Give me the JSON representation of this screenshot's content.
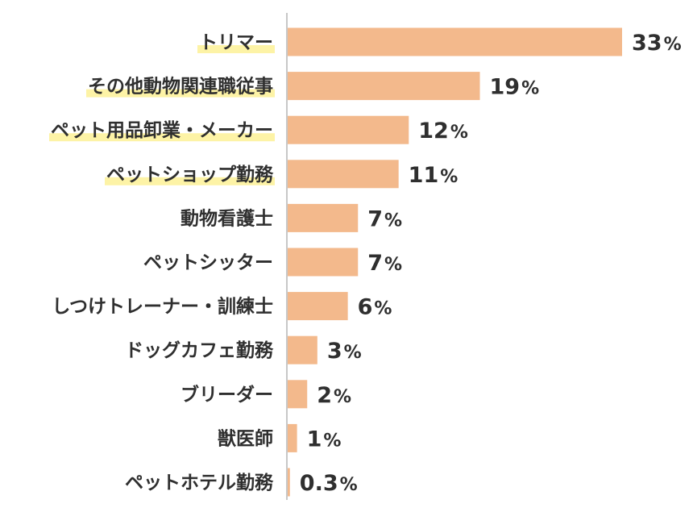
{
  "chart_data": {
    "type": "bar",
    "orientation": "horizontal",
    "categories": [
      "トリマー",
      "その他動物関連職従事",
      "ペット用品卸業・メーカー",
      "ペットショップ勤務",
      "動物看護士",
      "ペットシッター",
      "しつけトレーナー・訓練士",
      "ドッグカフェ勤務",
      "ブリーダー",
      "獣医師",
      "ペットホテル勤務"
    ],
    "values": [
      33,
      19,
      12,
      11,
      7,
      7,
      6,
      3,
      2,
      1,
      0.3
    ],
    "value_labels": [
      "33",
      "19",
      "12",
      "11",
      "7",
      "7",
      "6",
      "3",
      "2",
      "1",
      "0.3"
    ],
    "unit": "%",
    "highlighted": [
      true,
      true,
      true,
      true,
      false,
      false,
      false,
      false,
      false,
      false,
      false
    ],
    "xlim": [
      0,
      33
    ],
    "grid": false,
    "legend": "none",
    "colors": {
      "bar": "#f3b98c",
      "highlight": "#fdf3a6",
      "axis": "#c7c7c7",
      "text": "#2f2f2f"
    }
  }
}
